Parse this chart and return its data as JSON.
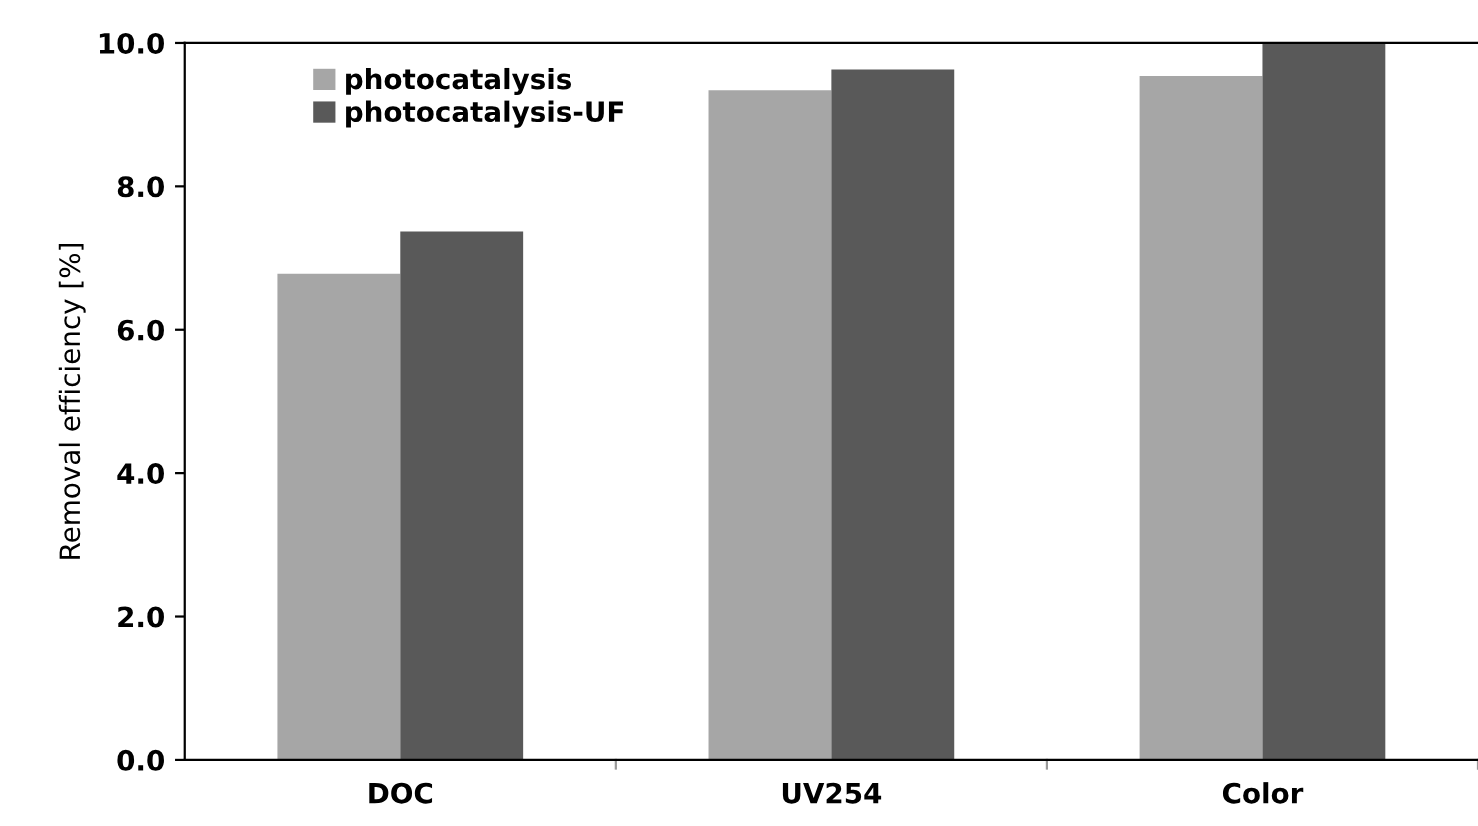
{
  "chart_data": {
    "type": "bar",
    "ylabel": "Removal efficiency [%]",
    "categories": [
      "DOC",
      "UV254",
      "Color"
    ],
    "series": [
      {
        "name": "photocatalysis",
        "color": "#a6a6a6",
        "values": [
          6.78,
          9.34,
          9.54
        ]
      },
      {
        "name": "photocatalysis-UF",
        "color": "#595959",
        "values": [
          7.37,
          9.63,
          10.0
        ]
      }
    ],
    "ylim": [
      0,
      10
    ],
    "yticks": [
      {
        "value": 0,
        "label": "0.0"
      },
      {
        "value": 2,
        "label": "2.0"
      },
      {
        "value": 4,
        "label": "4.0"
      },
      {
        "value": 6,
        "label": "6.0"
      },
      {
        "value": 8,
        "label": "8.0"
      },
      {
        "value": 10,
        "label": "10.0"
      }
    ],
    "grid": false,
    "legend": "top left"
  }
}
